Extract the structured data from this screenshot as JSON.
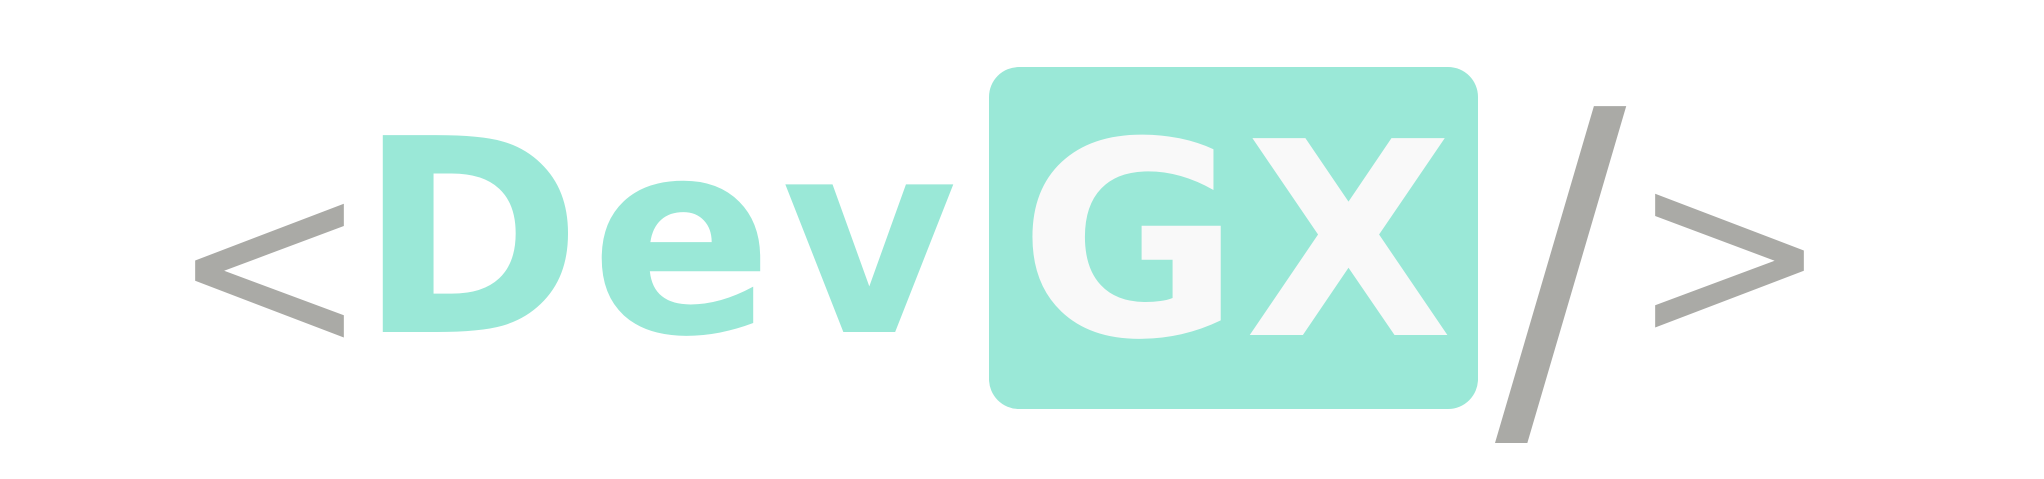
{
  "logo": {
    "open_bracket": "<",
    "word": "Dev",
    "badge": "GX",
    "slash": "/",
    "close_bracket": ">"
  },
  "colors": {
    "mint": "#9ae8d7",
    "gray": "#aaaaa6",
    "badge_text": "#f9f9f9",
    "background": "#ffffff"
  }
}
